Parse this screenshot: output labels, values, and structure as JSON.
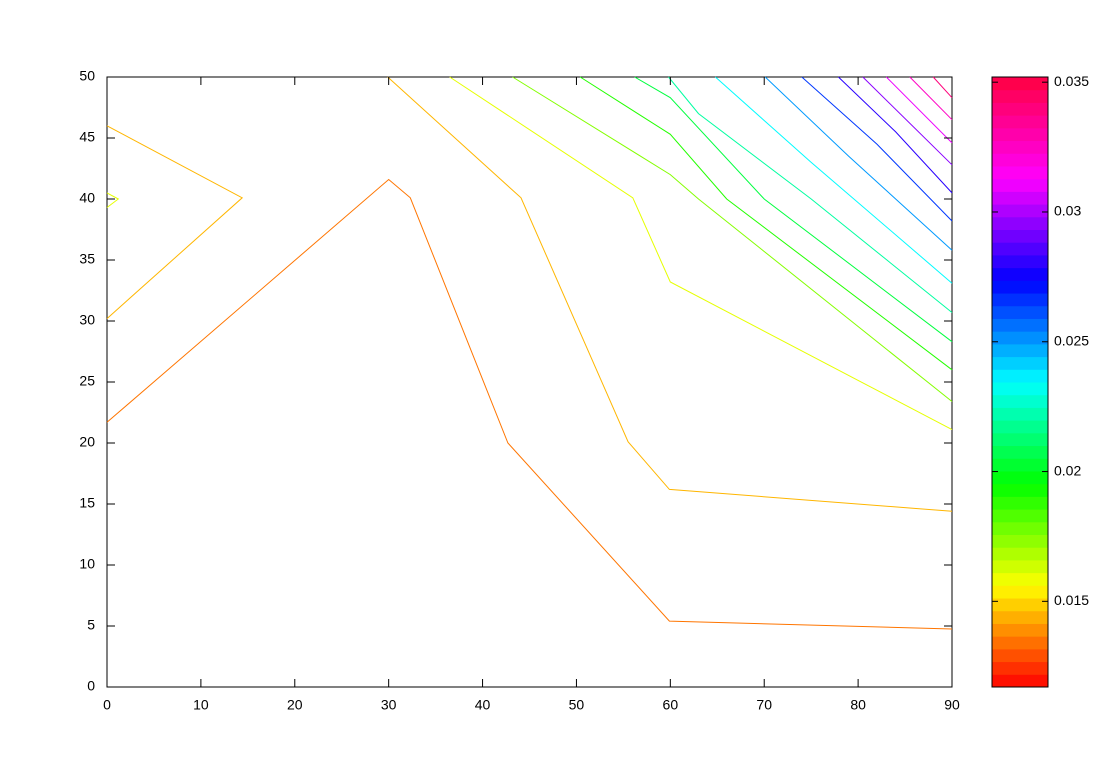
{
  "chart_data": {
    "type": "contour",
    "xlim": [
      0,
      90
    ],
    "ylim": [
      0,
      50
    ],
    "xticks": [
      0,
      10,
      20,
      30,
      40,
      50,
      60,
      70,
      80,
      90
    ],
    "yticks": [
      0,
      5,
      10,
      15,
      20,
      25,
      30,
      35,
      40,
      45,
      50
    ],
    "cblim": [
      0.0117,
      0.0352
    ],
    "cbticks": [
      0.015,
      0.02,
      0.025,
      0.03,
      0.035
    ],
    "palette": [
      "#ff0000",
      "#ffff00",
      "#00ff00",
      "#00ffff",
      "#0000ff",
      "#ff00ff",
      "#ff0040"
    ],
    "contours": [
      {
        "level": 0.0135,
        "x": [
          0,
          30,
          32.3,
          42.7,
          59.9,
          90
        ],
        "y": [
          21.7,
          41.6,
          40.1,
          20,
          5.4,
          4.75
        ]
      },
      {
        "level": 0.0145,
        "x": [
          0,
          14.4,
          0,
          null,
          29.9,
          44.1,
          55.5,
          59.9,
          90
        ],
        "y": [
          46,
          40.1,
          30.2,
          null,
          50,
          40.1,
          20.1,
          16.2,
          14.4
        ]
      },
      {
        "level": 0.016,
        "x": [
          0,
          1.2,
          0,
          null,
          36.5,
          56,
          60,
          90
        ],
        "y": [
          40.5,
          40,
          39.3,
          null,
          50,
          40.1,
          33.2,
          21.1
        ]
      },
      {
        "level": 0.0175,
        "x": [
          43.2,
          60,
          63,
          90
        ],
        "y": [
          50,
          42,
          40,
          23.4
        ]
      },
      {
        "level": 0.019,
        "x": [
          50.4,
          60,
          66,
          90
        ],
        "y": [
          50,
          45.3,
          40,
          26
        ]
      },
      {
        "level": 0.0205,
        "x": [
          56.2,
          60,
          70,
          90
        ],
        "y": [
          50,
          48.3,
          40,
          28.3
        ]
      },
      {
        "level": 0.022,
        "x": [
          59.8,
          63,
          75,
          90
        ],
        "y": [
          50,
          47,
          40,
          30.7
        ]
      },
      {
        "level": 0.0235,
        "x": [
          64.8,
          75,
          90
        ],
        "y": [
          50,
          43,
          33.1
        ]
      },
      {
        "level": 0.025,
        "x": [
          70.1,
          79,
          90
        ],
        "y": [
          50,
          43.5,
          35.8
        ]
      },
      {
        "level": 0.0265,
        "x": [
          74,
          82,
          90
        ],
        "y": [
          50,
          44.5,
          38.2
        ]
      },
      {
        "level": 0.028,
        "x": [
          77.9,
          84,
          90
        ],
        "y": [
          50,
          45.5,
          40.5
        ]
      },
      {
        "level": 0.0295,
        "x": [
          80.5,
          90
        ],
        "y": [
          50,
          42.8
        ]
      },
      {
        "level": 0.031,
        "x": [
          83,
          90
        ],
        "y": [
          50,
          44.6
        ]
      },
      {
        "level": 0.0325,
        "x": [
          85.5,
          90
        ],
        "y": [
          50,
          46.5
        ]
      },
      {
        "level": 0.034,
        "x": [
          88,
          90
        ],
        "y": [
          50,
          48.3
        ]
      }
    ]
  }
}
